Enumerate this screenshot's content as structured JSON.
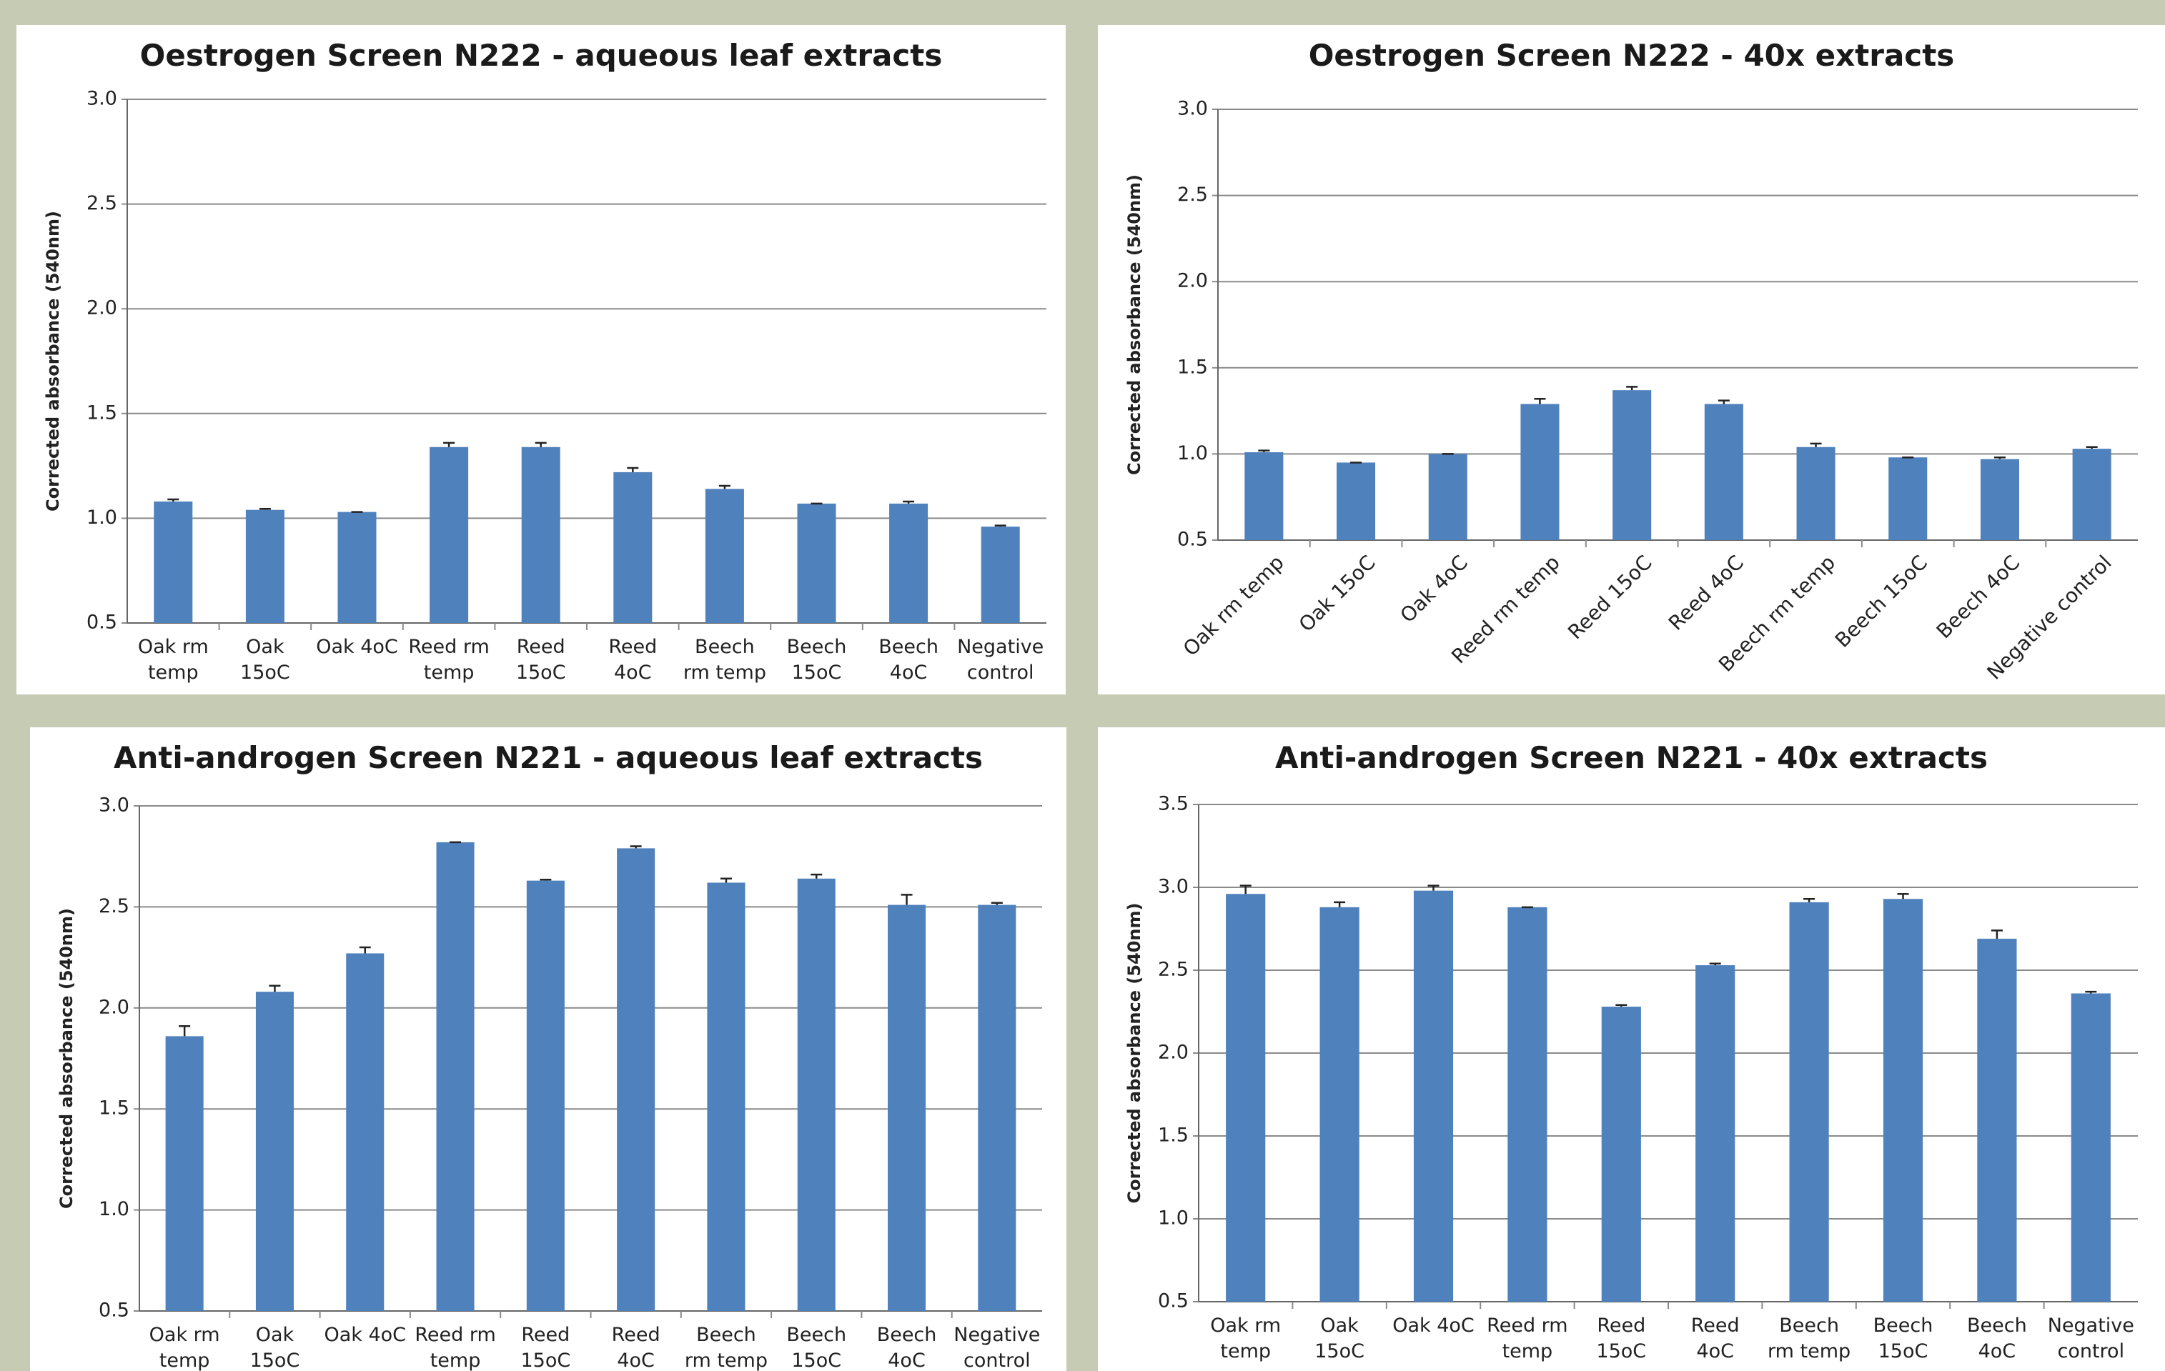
{
  "chart_data": [
    {
      "type": "bar",
      "title": "Oestrogen Screen N222 - aqueous leaf extracts",
      "y_label": "Corrected absorbance (540nm)",
      "categories": [
        "Oak rm temp",
        "Oak 15oC",
        "Oak 4oC",
        "Reed rm temp",
        "Reed 15oC",
        "Reed 4oC",
        "Beech rm temp",
        "Beech 15oC",
        "Beech 4oC",
        "Negative control"
      ],
      "values": [
        1.08,
        1.04,
        1.03,
        1.34,
        1.34,
        1.22,
        1.14,
        1.07,
        1.07,
        0.96
      ],
      "errors": [
        0.01,
        0.005,
        0,
        0.02,
        0.02,
        0.02,
        0.015,
        0,
        0.01,
        0.005
      ],
      "color": "#4f81bd",
      "grid": true,
      "ylim": [
        0.5,
        3
      ],
      "yticks": [
        0.5,
        {
          "value": 1,
          "label": "1.0"
        },
        1.5,
        {
          "value": 2,
          "label": "2.0"
        },
        2.5,
        {
          "value": 3,
          "label": "3.0"
        }
      ]
    },
    {
      "type": "bar",
      "title": "Oestrogen Screen N222 - 40x extracts",
      "y_label": "Corrected absorbance (540nm)",
      "categories": [
        "Oak rm temp",
        "Oak 15oC",
        "Oak 4oC",
        "Reed rm temp",
        "Reed 15oC",
        "Reed 4oC",
        "Beech rm temp",
        "Beech 15oC",
        "Beech 4oC",
        "Negative control"
      ],
      "values": [
        1.01,
        0.95,
        1.0,
        1.29,
        1.37,
        1.29,
        1.04,
        0.98,
        0.97,
        1.03
      ],
      "errors": [
        0.01,
        0,
        0,
        0.03,
        0.02,
        0.02,
        0.02,
        0,
        0.01,
        0.01
      ],
      "color": "#4f81bd",
      "grid": true,
      "ylim": [
        0.5,
        3
      ],
      "yticks": [
        0.5,
        {
          "value": 1,
          "label": "1.0"
        },
        1.5,
        {
          "value": 2,
          "label": "2.0"
        },
        2.5,
        {
          "value": 3,
          "label": "3.0"
        }
      ]
    },
    {
      "type": "bar",
      "title": "Anti-androgen Screen N221 - aqueous leaf extracts",
      "y_label": "Corrected absorbance (540nm)",
      "categories": [
        "Oak rm temp",
        "Oak 15oC",
        "Oak 4oC",
        "Reed rm temp",
        "Reed 15oC",
        "Reed 4oC",
        "Beech rm temp",
        "Beech 15oC",
        "Beech 4oC",
        "Negative control"
      ],
      "values": [
        1.86,
        2.08,
        2.27,
        2.82,
        2.63,
        2.79,
        2.62,
        2.64,
        2.51,
        2.51
      ],
      "errors": [
        0.05,
        0.03,
        0.03,
        0,
        0.005,
        0.01,
        0.02,
        0.02,
        0.05,
        0.01
      ],
      "color": "#4f81bd",
      "grid": true,
      "ylim": [
        0.5,
        3
      ],
      "yticks": [
        0.5,
        {
          "value": 1,
          "label": "1.0"
        },
        1.5,
        {
          "value": 2,
          "label": "2.0"
        },
        2.5,
        {
          "value": 3,
          "label": "3.0"
        }
      ]
    },
    {
      "type": "bar",
      "title": "Anti-androgen Screen N221 - 40x extracts",
      "y_label": "Corrected absorbance (540nm)",
      "categories": [
        "Oak rm temp",
        "Oak 15oC",
        "Oak 4oC",
        "Reed rm temp",
        "Reed 15oC",
        "Reed 4oC",
        "Beech rm temp",
        "Beech 15oC",
        "Beech 4oC",
        "Negative control"
      ],
      "values": [
        2.96,
        2.88,
        2.98,
        2.88,
        2.28,
        2.53,
        2.91,
        2.93,
        2.69,
        2.36
      ],
      "errors": [
        0.05,
        0.03,
        0.03,
        0,
        0.01,
        0.01,
        0.02,
        0.03,
        0.05,
        0.01
      ],
      "color": "#4f81bd",
      "grid": true,
      "ylim": [
        0.5,
        3.5
      ],
      "yticks": [
        0.5,
        {
          "value": 1,
          "label": "1.0"
        },
        1.5,
        {
          "value": 2,
          "label": "2.0"
        },
        2.5,
        {
          "value": 3,
          "label": "3.0"
        },
        3.5
      ]
    }
  ]
}
